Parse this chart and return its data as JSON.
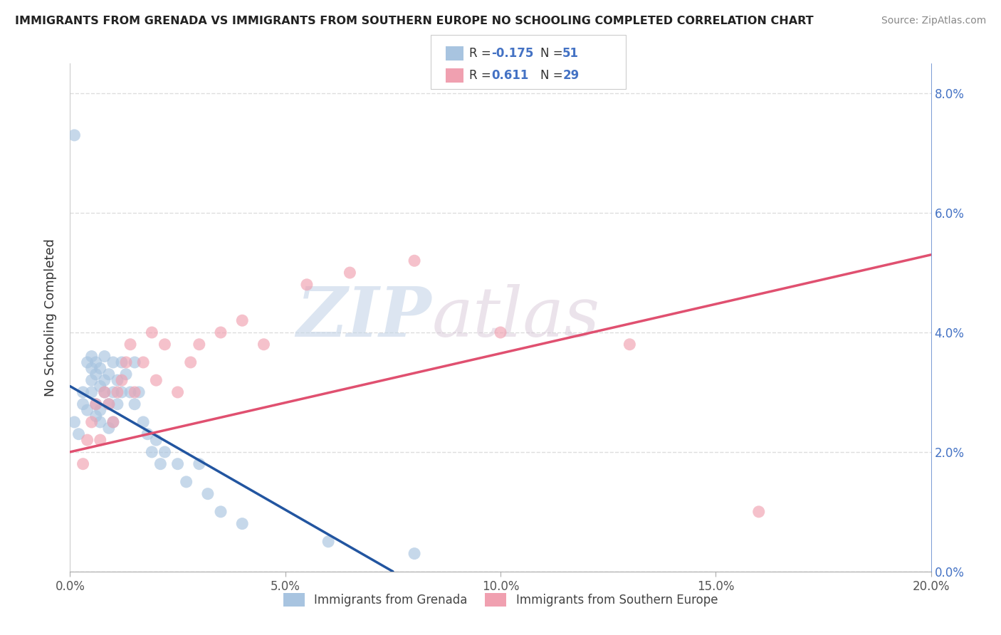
{
  "title": "IMMIGRANTS FROM GRENADA VS IMMIGRANTS FROM SOUTHERN EUROPE NO SCHOOLING COMPLETED CORRELATION CHART",
  "source": "Source: ZipAtlas.com",
  "ylabel": "No Schooling Completed",
  "legend_label1": "Immigrants from Grenada",
  "legend_label2": "Immigrants from Southern Europe",
  "R1": -0.175,
  "N1": 51,
  "R2": 0.611,
  "N2": 29,
  "color1": "#a8c4e0",
  "color2": "#f0a0b0",
  "line_color1": "#2255a0",
  "line_color2": "#e05070",
  "dash_color": "#aabbcc",
  "xlim": [
    0.0,
    0.2
  ],
  "ylim": [
    0.0,
    0.085
  ],
  "xticks": [
    0.0,
    0.05,
    0.1,
    0.15,
    0.2
  ],
  "xtick_labels": [
    "0.0%",
    "5.0%",
    "10.0%",
    "15.0%",
    "20.0%"
  ],
  "yticks": [
    0.0,
    0.02,
    0.04,
    0.06,
    0.08
  ],
  "ytick_labels": [
    "0.0%",
    "2.0%",
    "4.0%",
    "6.0%",
    "8.0%"
  ],
  "watermark_text": "ZIPatlas",
  "blue_x": [
    0.001,
    0.002,
    0.003,
    0.003,
    0.004,
    0.004,
    0.005,
    0.005,
    0.005,
    0.005,
    0.006,
    0.006,
    0.006,
    0.006,
    0.007,
    0.007,
    0.007,
    0.007,
    0.008,
    0.008,
    0.008,
    0.009,
    0.009,
    0.009,
    0.01,
    0.01,
    0.01,
    0.011,
    0.011,
    0.012,
    0.012,
    0.013,
    0.014,
    0.015,
    0.015,
    0.016,
    0.017,
    0.018,
    0.019,
    0.02,
    0.021,
    0.022,
    0.025,
    0.027,
    0.03,
    0.032,
    0.035,
    0.04,
    0.06,
    0.08,
    0.001
  ],
  "blue_y": [
    0.025,
    0.023,
    0.03,
    0.028,
    0.035,
    0.027,
    0.032,
    0.034,
    0.036,
    0.03,
    0.033,
    0.035,
    0.028,
    0.026,
    0.031,
    0.034,
    0.027,
    0.025,
    0.03,
    0.032,
    0.036,
    0.033,
    0.028,
    0.024,
    0.035,
    0.03,
    0.025,
    0.032,
    0.028,
    0.03,
    0.035,
    0.033,
    0.03,
    0.028,
    0.035,
    0.03,
    0.025,
    0.023,
    0.02,
    0.022,
    0.018,
    0.02,
    0.018,
    0.015,
    0.018,
    0.013,
    0.01,
    0.008,
    0.005,
    0.003,
    0.073
  ],
  "pink_x": [
    0.003,
    0.004,
    0.005,
    0.006,
    0.007,
    0.008,
    0.009,
    0.01,
    0.011,
    0.012,
    0.013,
    0.014,
    0.015,
    0.017,
    0.019,
    0.02,
    0.022,
    0.025,
    0.028,
    0.03,
    0.035,
    0.04,
    0.045,
    0.055,
    0.065,
    0.08,
    0.1,
    0.13,
    0.16
  ],
  "pink_y": [
    0.018,
    0.022,
    0.025,
    0.028,
    0.022,
    0.03,
    0.028,
    0.025,
    0.03,
    0.032,
    0.035,
    0.038,
    0.03,
    0.035,
    0.04,
    0.032,
    0.038,
    0.03,
    0.035,
    0.038,
    0.04,
    0.042,
    0.038,
    0.048,
    0.05,
    0.052,
    0.04,
    0.038,
    0.01
  ],
  "blue_line_x0": 0.0,
  "blue_line_y0": 0.031,
  "blue_line_x1": 0.075,
  "blue_line_y1": 0.0,
  "pink_line_x0": 0.0,
  "pink_line_y0": 0.02,
  "pink_line_x1": 0.2,
  "pink_line_y1": 0.053
}
